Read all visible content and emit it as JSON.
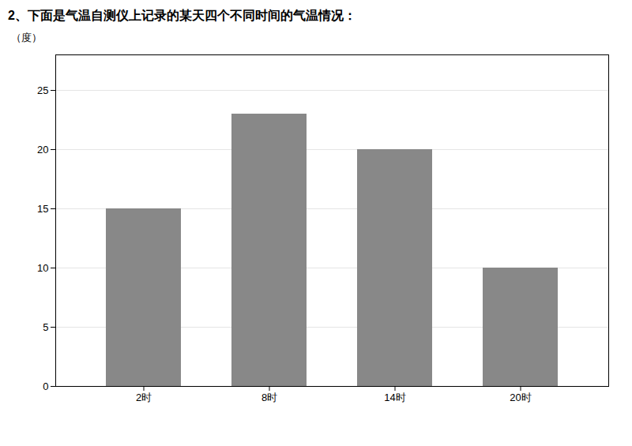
{
  "chart_data": {
    "type": "bar",
    "title": "2、下面是气温自测仪上记录的某天四个不同时间的气温情况：",
    "categories": [
      "2时",
      "8时",
      "14时",
      "20时"
    ],
    "values": [
      15,
      23,
      20,
      10
    ],
    "color": "#888888",
    "ylabel": "（度）",
    "ylim": [
      0,
      28
    ],
    "yticks": [
      0,
      5,
      10,
      15,
      20,
      25
    ],
    "grid": true
  }
}
